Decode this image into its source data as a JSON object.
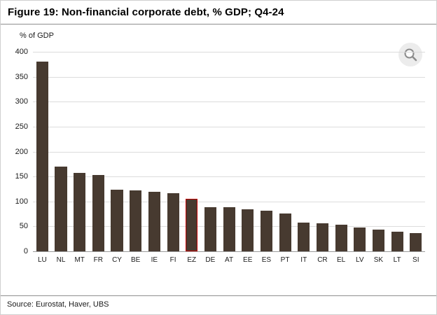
{
  "header": {
    "title": "Figure 19: Non-financial corporate debt, % GDP; Q4-24"
  },
  "chart_data": {
    "type": "bar",
    "title": "Figure 19: Non-financial corporate debt, % GDP; Q4-24",
    "ylabel": "% of GDP",
    "xlabel": "",
    "ylim": [
      0,
      400
    ],
    "ytick_step": 50,
    "grid": true,
    "legend": "none",
    "categories": [
      "LU",
      "NL",
      "MT",
      "FR",
      "CY",
      "BE",
      "IE",
      "FI",
      "EZ",
      "DE",
      "AT",
      "EE",
      "ES",
      "PT",
      "IT",
      "CR",
      "EL",
      "LV",
      "SK",
      "LT",
      "SI"
    ],
    "values": [
      380,
      170,
      157,
      153,
      124,
      122,
      119,
      116,
      105,
      88,
      88,
      84,
      82,
      76,
      57,
      56,
      54,
      48,
      43,
      40,
      36
    ],
    "bar_color": "#473a30",
    "highlight_category": "EZ",
    "highlight_color": "#c00000"
  },
  "toolbar": {
    "zoom_icon": "magnifier"
  },
  "footer": {
    "source": "Source: Eurostat, Haver, UBS"
  }
}
